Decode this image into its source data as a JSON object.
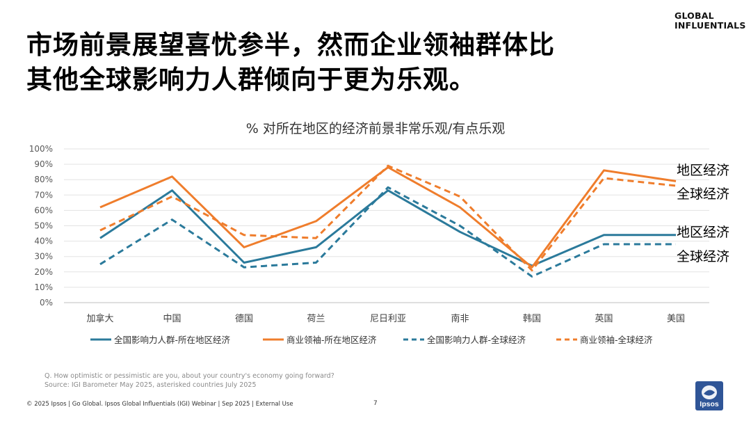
{
  "brand": {
    "line1": "GLOBAL",
    "line2": "INFLUENTIALS"
  },
  "title": {
    "line1": "市场前景展望喜忧参半，然而企业领袖群体比",
    "line2": "其他全球影响力人群倾向于更为乐观。"
  },
  "chart_data": {
    "type": "line",
    "title": "% 对所在地区的经济前景非常乐观/有点乐观",
    "categories": [
      "加拿大",
      "中国",
      "德国",
      "荷兰",
      "尼日利亚",
      "南非",
      "韩国",
      "英国",
      "美国"
    ],
    "yticks": [
      "0%",
      "10%",
      "20%",
      "30%",
      "40%",
      "50%",
      "60%",
      "70%",
      "80%",
      "90%",
      "100%"
    ],
    "ylim": [
      0,
      100
    ],
    "series": [
      {
        "name": "全国影响力人群-所在地区经济",
        "color": "#2b7a9b",
        "dash": false,
        "values": [
          42,
          73,
          26,
          36,
          73,
          46,
          24,
          44,
          44
        ]
      },
      {
        "name": "商业领袖-所在地区经济",
        "color": "#ef7d2c",
        "dash": false,
        "values": [
          62,
          82,
          36,
          53,
          88,
          62,
          23,
          86,
          79
        ]
      },
      {
        "name": "全国影响力人群-全球经济",
        "color": "#2b7a9b",
        "dash": true,
        "values": [
          25,
          54,
          23,
          26,
          75,
          50,
          17,
          38,
          38
        ]
      },
      {
        "name": "商业领袖-全球经济",
        "color": "#ef7d2c",
        "dash": true,
        "values": [
          47,
          69,
          44,
          42,
          89,
          69,
          21,
          81,
          76
        ]
      }
    ],
    "end_labels": {
      "orange_regional": "地区经济",
      "orange_global": "全球经济",
      "blue_regional": "地区经济",
      "blue_global": "全球经济"
    },
    "legend_position": "bottom"
  },
  "note": {
    "question": "Q. How optimistic or pessimistic are you, about your country's economy going forward?",
    "source": "Source: IGI Barometer May 2025, asterisked countries July 2025"
  },
  "footer": {
    "text": "© 2025 Ipsos | Go Global. Ipsos Global Influentials (IGI) Webinar | Sep 2025 | External Use"
  },
  "page": {
    "number": "7"
  },
  "logo": {
    "text": "Ipsos"
  }
}
